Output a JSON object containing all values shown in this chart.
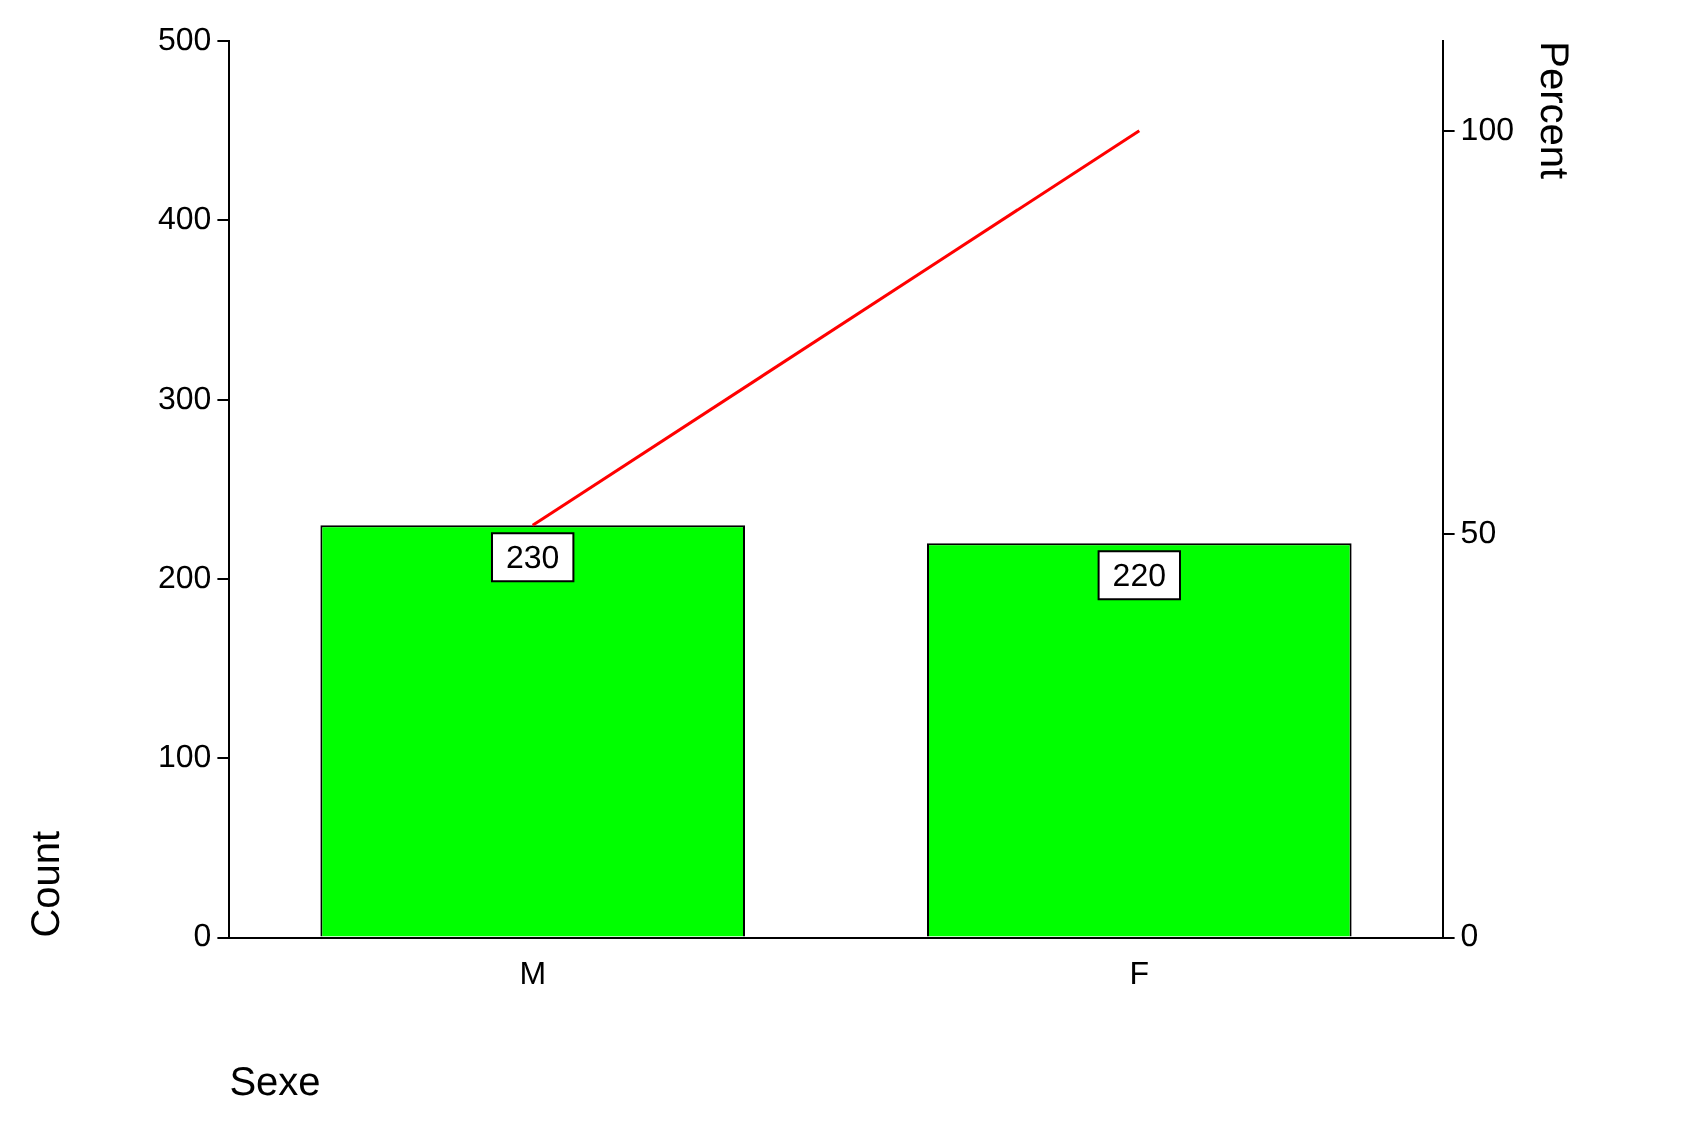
{
  "chart_data": {
    "type": "bar",
    "xlabel": "Sexe",
    "ylabel": "Count",
    "y2label": "Percent",
    "categories": [
      "M",
      "F"
    ],
    "series": [
      {
        "color": "#00ff00",
        "values": [
          230,
          220
        ],
        "value_labels": [
          "230",
          "220"
        ]
      },
      {
        "type": "line",
        "color": "#ff0000",
        "axis": "y2",
        "values": [
          51.1,
          100
        ],
        "marker": "none"
      }
    ],
    "ylim": [
      0,
      500
    ],
    "yticks": [
      0,
      100,
      200,
      300,
      400,
      500
    ],
    "y2lim": [
      0,
      111.1
    ],
    "y2ticks": [
      0,
      50,
      100
    ],
    "grid": false,
    "legend": false
  }
}
